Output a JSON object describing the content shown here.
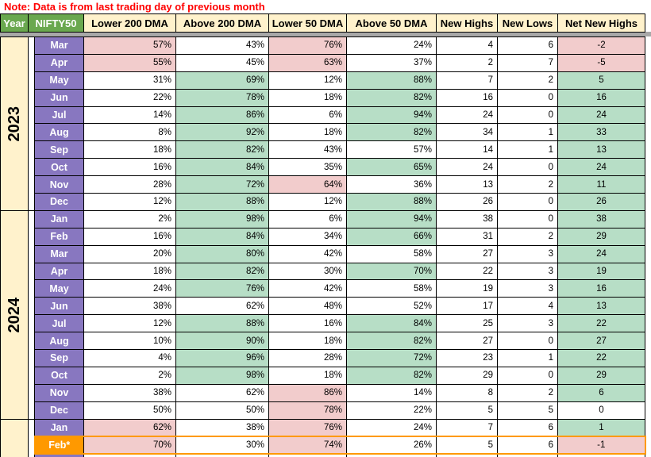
{
  "note": "Note: Data is from last trading day of previous month",
  "colors": {
    "note_text": "#ff0000",
    "header_green": "#6aa84f",
    "header_cream": "#fff2cc",
    "month_purple": "#8877c0",
    "fill_pink": "#f2cccc",
    "fill_green": "#b7dec6",
    "highlight_orange": "#ff9900",
    "divider_gray": "#a8a8a8"
  },
  "table": {
    "headers": {
      "year": "Year",
      "index": "NIFTY50",
      "cols": [
        "Lower 200 DMA",
        "Above 200 DMA",
        "Lower 50 DMA",
        "Above 50 DMA",
        "New Highs",
        "New Lows",
        "Net New Highs"
      ]
    },
    "col_keys": [
      "lower-200-dma",
      "above-200-dma",
      "lower-50-dma",
      "above-50-dma",
      "new-highs",
      "new-lows",
      "net-new-highs"
    ],
    "groups": [
      {
        "year": "2023",
        "rows": [
          {
            "month": "Mar",
            "values": [
              "57%",
              "43%",
              "76%",
              "24%",
              "4",
              "6",
              "-2"
            ],
            "fills": [
              "p",
              "w",
              "p",
              "w",
              "w",
              "w",
              "p"
            ]
          },
          {
            "month": "Apr",
            "values": [
              "55%",
              "45%",
              "63%",
              "37%",
              "2",
              "7",
              "-5"
            ],
            "fills": [
              "p",
              "w",
              "p",
              "w",
              "w",
              "w",
              "p"
            ]
          },
          {
            "month": "May",
            "values": [
              "31%",
              "69%",
              "12%",
              "88%",
              "7",
              "2",
              "5"
            ],
            "fills": [
              "w",
              "g",
              "w",
              "g",
              "w",
              "w",
              "g"
            ]
          },
          {
            "month": "Jun",
            "values": [
              "22%",
              "78%",
              "18%",
              "82%",
              "16",
              "0",
              "16"
            ],
            "fills": [
              "w",
              "g",
              "w",
              "g",
              "w",
              "w",
              "g"
            ]
          },
          {
            "month": "Jul",
            "values": [
              "14%",
              "86%",
              "6%",
              "94%",
              "24",
              "0",
              "24"
            ],
            "fills": [
              "w",
              "g",
              "w",
              "g",
              "w",
              "w",
              "g"
            ]
          },
          {
            "month": "Aug",
            "values": [
              "8%",
              "92%",
              "18%",
              "82%",
              "34",
              "1",
              "33"
            ],
            "fills": [
              "w",
              "g",
              "w",
              "g",
              "w",
              "w",
              "g"
            ]
          },
          {
            "month": "Sep",
            "values": [
              "18%",
              "82%",
              "43%",
              "57%",
              "14",
              "1",
              "13"
            ],
            "fills": [
              "w",
              "g",
              "w",
              "w",
              "w",
              "w",
              "g"
            ]
          },
          {
            "month": "Oct",
            "values": [
              "16%",
              "84%",
              "35%",
              "65%",
              "24",
              "0",
              "24"
            ],
            "fills": [
              "w",
              "g",
              "w",
              "g",
              "w",
              "w",
              "g"
            ]
          },
          {
            "month": "Nov",
            "values": [
              "28%",
              "72%",
              "64%",
              "36%",
              "13",
              "2",
              "11"
            ],
            "fills": [
              "w",
              "g",
              "p",
              "w",
              "w",
              "w",
              "g"
            ]
          },
          {
            "month": "Dec",
            "values": [
              "12%",
              "88%",
              "12%",
              "88%",
              "26",
              "0",
              "26"
            ],
            "fills": [
              "w",
              "g",
              "w",
              "g",
              "w",
              "w",
              "g"
            ]
          }
        ]
      },
      {
        "year": "2024",
        "rows": [
          {
            "month": "Jan",
            "values": [
              "2%",
              "98%",
              "6%",
              "94%",
              "38",
              "0",
              "38"
            ],
            "fills": [
              "w",
              "g",
              "w",
              "g",
              "w",
              "w",
              "g"
            ]
          },
          {
            "month": "Feb",
            "values": [
              "16%",
              "84%",
              "34%",
              "66%",
              "31",
              "2",
              "29"
            ],
            "fills": [
              "w",
              "g",
              "w",
              "g",
              "w",
              "w",
              "g"
            ]
          },
          {
            "month": "Mar",
            "values": [
              "20%",
              "80%",
              "42%",
              "58%",
              "27",
              "3",
              "24"
            ],
            "fills": [
              "w",
              "g",
              "w",
              "w",
              "w",
              "w",
              "g"
            ]
          },
          {
            "month": "Apr",
            "values": [
              "18%",
              "82%",
              "30%",
              "70%",
              "22",
              "3",
              "19"
            ],
            "fills": [
              "w",
              "g",
              "w",
              "g",
              "w",
              "w",
              "g"
            ]
          },
          {
            "month": "May",
            "values": [
              "24%",
              "76%",
              "42%",
              "58%",
              "19",
              "3",
              "16"
            ],
            "fills": [
              "w",
              "g",
              "w",
              "w",
              "w",
              "w",
              "g"
            ]
          },
          {
            "month": "Jun",
            "values": [
              "38%",
              "62%",
              "48%",
              "52%",
              "17",
              "4",
              "13"
            ],
            "fills": [
              "w",
              "w",
              "w",
              "w",
              "w",
              "w",
              "g"
            ]
          },
          {
            "month": "Jul",
            "values": [
              "12%",
              "88%",
              "16%",
              "84%",
              "25",
              "3",
              "22"
            ],
            "fills": [
              "w",
              "g",
              "w",
              "g",
              "w",
              "w",
              "g"
            ]
          },
          {
            "month": "Aug",
            "values": [
              "10%",
              "90%",
              "18%",
              "82%",
              "27",
              "0",
              "27"
            ],
            "fills": [
              "w",
              "g",
              "w",
              "g",
              "w",
              "w",
              "g"
            ]
          },
          {
            "month": "Sep",
            "values": [
              "4%",
              "96%",
              "28%",
              "72%",
              "23",
              "1",
              "22"
            ],
            "fills": [
              "w",
              "g",
              "w",
              "g",
              "w",
              "w",
              "g"
            ]
          },
          {
            "month": "Oct",
            "values": [
              "2%",
              "98%",
              "18%",
              "82%",
              "29",
              "0",
              "29"
            ],
            "fills": [
              "w",
              "g",
              "w",
              "g",
              "w",
              "w",
              "g"
            ]
          },
          {
            "month": "Nov",
            "values": [
              "38%",
              "62%",
              "86%",
              "14%",
              "8",
              "2",
              "6"
            ],
            "fills": [
              "w",
              "w",
              "p",
              "w",
              "w",
              "w",
              "g"
            ]
          },
          {
            "month": "Dec",
            "values": [
              "50%",
              "50%",
              "78%",
              "22%",
              "5",
              "5",
              "0"
            ],
            "fills": [
              "w",
              "w",
              "p",
              "w",
              "w",
              "w",
              "w"
            ]
          }
        ]
      },
      {
        "year": "",
        "rows": [
          {
            "month": "Jan",
            "values": [
              "62%",
              "38%",
              "76%",
              "24%",
              "7",
              "6",
              "1"
            ],
            "fills": [
              "p",
              "w",
              "p",
              "w",
              "w",
              "w",
              "g"
            ]
          },
          {
            "month": "Feb*",
            "values": [
              "70%",
              "30%",
              "74%",
              "26%",
              "5",
              "6",
              "-1"
            ],
            "fills": [
              "p",
              "w",
              "p",
              "w",
              "w",
              "w",
              "p"
            ],
            "highlight": true
          },
          {
            "month": "",
            "values": [
              "",
              "",
              "",
              "",
              "",
              "",
              ""
            ],
            "fills": [
              "w",
              "w",
              "w",
              "w",
              "w",
              "w",
              "w"
            ]
          }
        ]
      }
    ]
  }
}
